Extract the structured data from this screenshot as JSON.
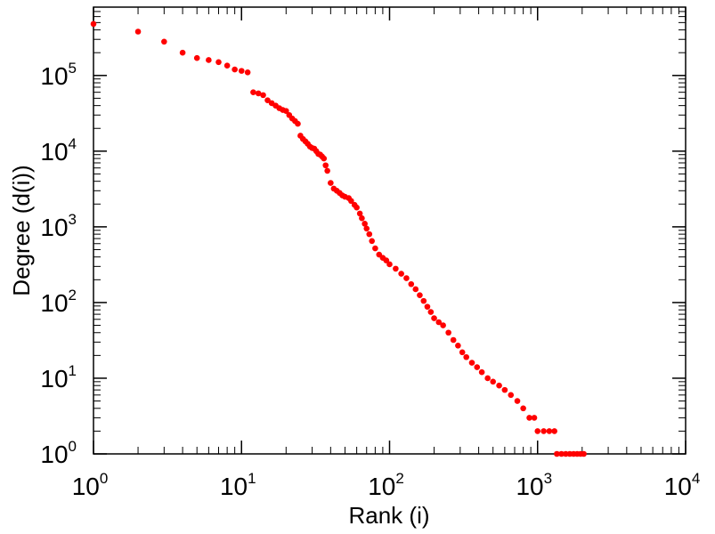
{
  "chart_data": {
    "type": "scatter",
    "title": "",
    "xlabel": "Rank (i)",
    "ylabel": "Degree (d(i))",
    "xscale": "log",
    "yscale": "log",
    "xlim": [
      1,
      10000
    ],
    "ylim": [
      1,
      800000
    ],
    "grid": false,
    "marker_color": "#ff0000",
    "x_ticks": [
      {
        "base": "10",
        "exp": "0",
        "value": 1
      },
      {
        "base": "10",
        "exp": "1",
        "value": 10
      },
      {
        "base": "10",
        "exp": "2",
        "value": 100
      },
      {
        "base": "10",
        "exp": "3",
        "value": 1000
      },
      {
        "base": "10",
        "exp": "4",
        "value": 10000
      }
    ],
    "y_ticks": [
      {
        "base": "10",
        "exp": "0",
        "value": 1
      },
      {
        "base": "10",
        "exp": "1",
        "value": 10
      },
      {
        "base": "10",
        "exp": "2",
        "value": 100
      },
      {
        "base": "10",
        "exp": "3",
        "value": 1000
      },
      {
        "base": "10",
        "exp": "4",
        "value": 10000
      },
      {
        "base": "10",
        "exp": "5",
        "value": 100000
      }
    ],
    "series": [
      {
        "name": "degree",
        "points": [
          [
            1,
            480000
          ],
          [
            2,
            380000
          ],
          [
            3,
            280000
          ],
          [
            4,
            200000
          ],
          [
            5,
            170000
          ],
          [
            6,
            160000
          ],
          [
            7,
            150000
          ],
          [
            8,
            135000
          ],
          [
            9,
            120000
          ],
          [
            10,
            115000
          ],
          [
            11,
            110000
          ],
          [
            12,
            60000
          ],
          [
            13,
            58000
          ],
          [
            14,
            55000
          ],
          [
            15,
            47000
          ],
          [
            16,
            43000
          ],
          [
            17,
            40000
          ],
          [
            18,
            37000
          ],
          [
            19,
            35000
          ],
          [
            20,
            34000
          ],
          [
            21,
            30000
          ],
          [
            22,
            27000
          ],
          [
            23,
            25000
          ],
          [
            24,
            23000
          ],
          [
            25,
            16000
          ],
          [
            26,
            14500
          ],
          [
            27,
            13500
          ],
          [
            28,
            12500
          ],
          [
            29,
            11500
          ],
          [
            30,
            11000
          ],
          [
            31,
            10800
          ],
          [
            32,
            10000
          ],
          [
            33,
            9200
          ],
          [
            34,
            9000
          ],
          [
            35,
            8500
          ],
          [
            36,
            8000
          ],
          [
            37,
            6500
          ],
          [
            38,
            5500
          ],
          [
            40,
            3800
          ],
          [
            42,
            3200
          ],
          [
            44,
            3000
          ],
          [
            46,
            2800
          ],
          [
            48,
            2600
          ],
          [
            50,
            2500
          ],
          [
            53,
            2400
          ],
          [
            55,
            2200
          ],
          [
            58,
            1950
          ],
          [
            60,
            1800
          ],
          [
            63,
            1500
          ],
          [
            65,
            1300
          ],
          [
            68,
            1100
          ],
          [
            70,
            950
          ],
          [
            73,
            800
          ],
          [
            76,
            650
          ],
          [
            80,
            520
          ],
          [
            85,
            430
          ],
          [
            90,
            390
          ],
          [
            95,
            360
          ],
          [
            100,
            320
          ],
          [
            110,
            280
          ],
          [
            120,
            240
          ],
          [
            130,
            210
          ],
          [
            140,
            175
          ],
          [
            150,
            150
          ],
          [
            160,
            125
          ],
          [
            170,
            105
          ],
          [
            180,
            88
          ],
          [
            190,
            75
          ],
          [
            200,
            62
          ],
          [
            215,
            55
          ],
          [
            230,
            50
          ],
          [
            250,
            40
          ],
          [
            270,
            32
          ],
          [
            290,
            27
          ],
          [
            310,
            22
          ],
          [
            330,
            19
          ],
          [
            360,
            16
          ],
          [
            390,
            14
          ],
          [
            420,
            12
          ],
          [
            460,
            10
          ],
          [
            500,
            9
          ],
          [
            550,
            8
          ],
          [
            600,
            7
          ],
          [
            660,
            6
          ],
          [
            730,
            5
          ],
          [
            800,
            4
          ],
          [
            880,
            3
          ],
          [
            950,
            3
          ],
          [
            1000,
            2
          ],
          [
            1100,
            2
          ],
          [
            1200,
            2
          ],
          [
            1300,
            2
          ],
          [
            1350,
            1
          ],
          [
            1450,
            1
          ],
          [
            1550,
            1
          ],
          [
            1650,
            1
          ],
          [
            1750,
            1
          ],
          [
            1850,
            1
          ],
          [
            1950,
            1
          ],
          [
            2050,
            1
          ]
        ]
      }
    ]
  }
}
